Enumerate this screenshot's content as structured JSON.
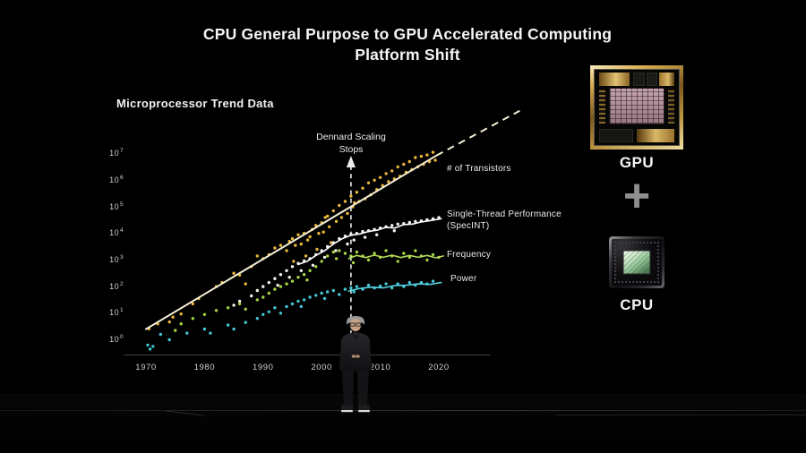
{
  "slide": {
    "title_line1": "CPU General Purpose to GPU Accelerated Computing",
    "title_line2": "Platform Shift",
    "chart_header": "Microprocessor Trend Data"
  },
  "annotation": {
    "line1": "Dennard Scaling",
    "line2": "Stops"
  },
  "right_panel": {
    "gpu_label": "GPU",
    "plus_icon": "+",
    "cpu_label": "CPU"
  },
  "colors": {
    "background": "#000000",
    "text": "#f2f2f2",
    "plus": "#8f8f8f",
    "axis_line": "#3e3e3e",
    "dashed_annotation_line": "#ededed"
  },
  "chart_data": {
    "type": "scatter",
    "title": "Microprocessor Trend Data",
    "grid": false,
    "x_axis": {
      "ticks": [
        1970,
        1980,
        1990,
        2000,
        2010,
        2020
      ],
      "range": [
        1966,
        2022
      ]
    },
    "y_axis": {
      "scale": "log10",
      "base": "10",
      "tick_exponents": [
        0,
        1,
        2,
        3,
        4,
        5,
        6,
        7
      ],
      "range_exponents": [
        0,
        7
      ]
    },
    "annotations": {
      "label": "Dennard Scaling Stops",
      "dennard_year": 2005
    },
    "series": [
      {
        "id": "transistors",
        "name": "# of Transistors",
        "color": "#e9b63c",
        "line_color": "#f5eed6",
        "line_width": 2,
        "points": [
          [
            1970.5,
            0.36
          ],
          [
            1972,
            0.55
          ],
          [
            1974,
            0.62
          ],
          [
            1974.6,
            0.8
          ],
          [
            1976,
            0.92
          ],
          [
            1978,
            1.3
          ],
          [
            1979,
            1.5
          ],
          [
            1982,
            1.95
          ],
          [
            1983,
            2.1
          ],
          [
            1985,
            2.45
          ],
          [
            1986,
            2.38
          ],
          [
            1987,
            2.05
          ],
          [
            1988,
            2.7
          ],
          [
            1989,
            3.1
          ],
          [
            1990,
            3.0
          ],
          [
            1991,
            3.15
          ],
          [
            1992,
            3.4
          ],
          [
            1993,
            3.5
          ],
          [
            1994,
            3.3
          ],
          [
            1994.5,
            3.65
          ],
          [
            1995,
            3.75
          ],
          [
            1995.2,
            2.9
          ],
          [
            1995.5,
            3.5
          ],
          [
            1996,
            3.9
          ],
          [
            1996.5,
            3.55
          ],
          [
            1997,
            3.95
          ],
          [
            1997.3,
            3.1
          ],
          [
            1997.6,
            3.7
          ],
          [
            1998,
            3.82
          ],
          [
            1998.4,
            4.1
          ],
          [
            1999,
            4.25
          ],
          [
            1999.2,
            3.35
          ],
          [
            1999.5,
            3.95
          ],
          [
            2000,
            4.35
          ],
          [
            2000.3,
            4.0
          ],
          [
            2000.6,
            4.55
          ],
          [
            2001,
            4.6
          ],
          [
            2001.3,
            4.2
          ],
          [
            2001.6,
            3.6
          ],
          [
            2002,
            4.8
          ],
          [
            2002.5,
            4.4
          ],
          [
            2003,
            5.0
          ],
          [
            2003.4,
            4.55
          ],
          [
            2004,
            5.15
          ],
          [
            2004.4,
            4.7
          ],
          [
            2005,
            5.35
          ],
          [
            2005.3,
            4.95
          ],
          [
            2005.6,
            5.1
          ],
          [
            2006,
            5.5
          ],
          [
            2006.4,
            5.15
          ],
          [
            2007,
            5.65
          ],
          [
            2007.4,
            5.25
          ],
          [
            2008,
            5.85
          ],
          [
            2008.4,
            5.4
          ],
          [
            2009,
            5.95
          ],
          [
            2009.4,
            5.6
          ],
          [
            2010,
            6.05
          ],
          [
            2010.4,
            5.75
          ],
          [
            2011,
            6.2
          ],
          [
            2011.4,
            5.9
          ],
          [
            2012,
            6.3
          ],
          [
            2012.4,
            6.0
          ],
          [
            2013,
            6.45
          ],
          [
            2013.4,
            6.1
          ],
          [
            2014,
            6.55
          ],
          [
            2014.4,
            6.25
          ],
          [
            2015,
            6.65
          ],
          [
            2015.4,
            6.35
          ],
          [
            2016,
            6.8
          ],
          [
            2016.4,
            6.45
          ],
          [
            2017,
            6.85
          ],
          [
            2017.4,
            6.55
          ],
          [
            2018,
            6.9
          ],
          [
            2018.4,
            6.65
          ],
          [
            2019,
            7.0
          ],
          [
            2019.4,
            6.7
          ]
        ],
        "trend_solid": [
          [
            1970,
            0.35
          ],
          [
            2019.6,
            6.88
          ]
        ],
        "trend_dashed": [
          [
            2019.6,
            6.88
          ],
          [
            2033.8,
            8.56
          ]
        ]
      },
      {
        "id": "single_thread",
        "name": "Single-Thread Performance (SpecINT)",
        "color": "#f2f2ec",
        "line_color": "#ffffff",
        "line_width": 1.6,
        "points": [
          [
            1985,
            1.25
          ],
          [
            1986,
            1.4
          ],
          [
            1988,
            1.6
          ],
          [
            1989,
            1.8
          ],
          [
            1990,
            1.95
          ],
          [
            1991,
            2.1
          ],
          [
            1992,
            2.25
          ],
          [
            1992.5,
            2.0
          ],
          [
            1993,
            2.4
          ],
          [
            1994,
            2.55
          ],
          [
            1994.5,
            2.3
          ],
          [
            1995,
            2.7
          ],
          [
            1996,
            2.82
          ],
          [
            1996.5,
            2.55
          ],
          [
            1997,
            2.92
          ],
          [
            1998,
            3.0
          ],
          [
            1998.5,
            2.75
          ],
          [
            1999,
            3.15
          ],
          [
            2000,
            3.3
          ],
          [
            2000.5,
            3.05
          ],
          [
            2001,
            3.45
          ],
          [
            2002,
            3.6
          ],
          [
            2002.4,
            3.3
          ],
          [
            2003,
            3.75
          ],
          [
            2004,
            3.85
          ],
          [
            2004.4,
            3.55
          ],
          [
            2005,
            3.92
          ],
          [
            2005.5,
            3.7
          ],
          [
            2006,
            3.95
          ],
          [
            2007,
            4.02
          ],
          [
            2007.4,
            3.8
          ],
          [
            2008,
            4.05
          ],
          [
            2009,
            4.1
          ],
          [
            2009.4,
            3.9
          ],
          [
            2010,
            4.15
          ],
          [
            2011,
            4.2
          ],
          [
            2012,
            4.25
          ],
          [
            2012.4,
            4.05
          ],
          [
            2013,
            4.3
          ],
          [
            2014,
            4.32
          ],
          [
            2015,
            4.36
          ],
          [
            2016,
            4.4
          ],
          [
            2017,
            4.42
          ],
          [
            2018,
            4.46
          ],
          [
            2019,
            4.5
          ],
          [
            2020,
            4.55
          ]
        ],
        "trend_solid": [
          [
            1996,
            2.78
          ],
          [
            1997.5,
            2.9
          ],
          [
            1999,
            3.12
          ],
          [
            2000.5,
            3.3
          ],
          [
            2002,
            3.55
          ],
          [
            2003.5,
            3.75
          ],
          [
            2005,
            3.88
          ],
          [
            2006.5,
            3.93
          ],
          [
            2008,
            4.02
          ],
          [
            2009.5,
            4.07
          ],
          [
            2011,
            4.18
          ],
          [
            2012.5,
            4.15
          ],
          [
            2014,
            4.28
          ],
          [
            2015.5,
            4.3
          ],
          [
            2017,
            4.38
          ],
          [
            2018.5,
            4.43
          ],
          [
            2020.4,
            4.5
          ]
        ]
      },
      {
        "id": "frequency",
        "name": "Frequency",
        "color": "#a5d446",
        "line_color": "#b4dc5a",
        "line_width": 1.6,
        "points": [
          [
            1975,
            0.3
          ],
          [
            1976,
            0.55
          ],
          [
            1978,
            0.75
          ],
          [
            1980,
            0.9
          ],
          [
            1982,
            1.05
          ],
          [
            1984,
            1.15
          ],
          [
            1986,
            1.3
          ],
          [
            1987,
            1.1
          ],
          [
            1989,
            1.45
          ],
          [
            1990,
            1.55
          ],
          [
            1991,
            1.7
          ],
          [
            1992,
            1.85
          ],
          [
            1993,
            1.95
          ],
          [
            1994,
            2.05
          ],
          [
            1995,
            2.15
          ],
          [
            1996,
            2.3
          ],
          [
            1997,
            2.4
          ],
          [
            1997.5,
            2.2
          ],
          [
            1998,
            2.55
          ],
          [
            1999,
            2.7
          ],
          [
            2000,
            2.9
          ],
          [
            2001,
            3.1
          ],
          [
            2002,
            3.25
          ],
          [
            2002.5,
            3.0
          ],
          [
            2003,
            3.3
          ],
          [
            2004,
            3.2
          ],
          [
            2005,
            3.1
          ],
          [
            2005.4,
            2.85
          ],
          [
            2006,
            3.25
          ],
          [
            2007,
            3.1
          ],
          [
            2008,
            2.95
          ],
          [
            2009,
            3.2
          ],
          [
            2010,
            3.05
          ],
          [
            2011,
            3.3
          ],
          [
            2012,
            3.1
          ],
          [
            2013,
            2.9
          ],
          [
            2014,
            3.2
          ],
          [
            2015,
            3.05
          ],
          [
            2016,
            3.3
          ],
          [
            2017,
            3.1
          ],
          [
            2018,
            2.95
          ],
          [
            2019,
            3.15
          ],
          [
            2020,
            3.05
          ]
        ],
        "trend_solid": [
          [
            2004.6,
            3.0
          ],
          [
            2006,
            3.12
          ],
          [
            2007.5,
            3.04
          ],
          [
            2009,
            3.13
          ],
          [
            2010.5,
            3.05
          ],
          [
            2012,
            3.13
          ],
          [
            2013.5,
            3.04
          ],
          [
            2015,
            3.12
          ],
          [
            2016.5,
            3.05
          ],
          [
            2018,
            3.12
          ],
          [
            2019.5,
            3.03
          ],
          [
            2020.8,
            3.1
          ]
        ]
      },
      {
        "id": "power",
        "name": "Power",
        "color": "#45c6d6",
        "line_color": "#55d2e0",
        "line_width": 1.6,
        "points": [
          [
            1970.3,
            -0.25
          ],
          [
            1970.7,
            -0.4
          ],
          [
            1971.2,
            -0.3
          ],
          [
            1972.5,
            0.15
          ],
          [
            1974,
            -0.05
          ],
          [
            1977,
            0.2
          ],
          [
            1980,
            0.35
          ],
          [
            1981,
            0.2
          ],
          [
            1984,
            0.5
          ],
          [
            1985,
            0.35
          ],
          [
            1987,
            0.6
          ],
          [
            1989,
            0.75
          ],
          [
            1990,
            0.9
          ],
          [
            1991,
            1.0
          ],
          [
            1992,
            1.15
          ],
          [
            1993,
            0.95
          ],
          [
            1994,
            1.2
          ],
          [
            1995,
            1.3
          ],
          [
            1996,
            1.4
          ],
          [
            1996.5,
            1.2
          ],
          [
            1997,
            1.45
          ],
          [
            1998,
            1.55
          ],
          [
            1999,
            1.62
          ],
          [
            2000,
            1.7
          ],
          [
            2000.5,
            1.5
          ],
          [
            2001,
            1.75
          ],
          [
            2002,
            1.8
          ],
          [
            2003,
            1.65
          ],
          [
            2004,
            1.85
          ],
          [
            2005,
            1.9
          ],
          [
            2005.5,
            1.75
          ],
          [
            2006,
            1.95
          ],
          [
            2007,
            1.85
          ],
          [
            2008,
            2.0
          ],
          [
            2009,
            1.9
          ],
          [
            2010,
            1.97
          ],
          [
            2011,
            2.05
          ],
          [
            2012,
            1.9
          ],
          [
            2013,
            2.05
          ],
          [
            2014,
            1.95
          ],
          [
            2015,
            2.1
          ],
          [
            2016,
            2.0
          ],
          [
            2017,
            2.1
          ],
          [
            2018,
            2.05
          ],
          [
            2019,
            2.15
          ]
        ],
        "trend_solid": [
          [
            2004.6,
            1.78
          ],
          [
            2006.5,
            1.88
          ],
          [
            2008.5,
            1.93
          ],
          [
            2010.5,
            1.9
          ],
          [
            2012.5,
            1.99
          ],
          [
            2014.5,
            2.0
          ],
          [
            2016.5,
            2.05
          ],
          [
            2018.5,
            2.03
          ],
          [
            2020.4,
            2.1
          ]
        ]
      }
    ]
  }
}
